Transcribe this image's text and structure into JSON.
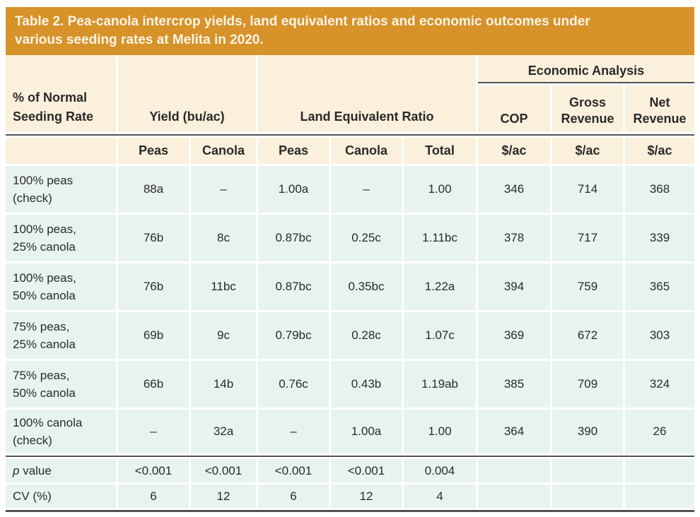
{
  "table": {
    "title": "Table 2. Pea-canola intercrop yields, land equivalent ratios and economic outcomes under\nvarious seeding rates at Melita in 2020.",
    "header": {
      "col1": "% of Normal\nSeeding Rate",
      "yield_group": "Yield (bu/ac)",
      "ler_group": "Land Equivalent Ratio",
      "economic_group": "Economic Analysis",
      "cop": "COP",
      "gross_revenue": "Gross\nRevenue",
      "net_revenue": "Net\nRevenue",
      "subheaders": [
        "Peas",
        "Canola",
        "Peas",
        "Canola",
        "Total",
        "$/ac",
        "$/ac",
        "$/ac"
      ]
    },
    "rows": [
      {
        "label": "100% peas\n(check)",
        "values": [
          "88a",
          "–",
          "1.00a",
          "–",
          "1.00",
          "346",
          "714",
          "368"
        ]
      },
      {
        "label": "100% peas,\n25% canola",
        "values": [
          "76b",
          "8c",
          "0.87bc",
          "0.25c",
          "1.11bc",
          "378",
          "717",
          "339"
        ]
      },
      {
        "label": "100% peas,\n50% canola",
        "values": [
          "76b",
          "11bc",
          "0.87bc",
          "0.35bc",
          "1.22a",
          "394",
          "759",
          "365"
        ]
      },
      {
        "label": "75% peas,\n25% canola",
        "values": [
          "69b",
          "9c",
          "0.79bc",
          "0.28c",
          "1.07c",
          "369",
          "672",
          "303"
        ]
      },
      {
        "label": "75% peas,\n50% canola",
        "values": [
          "66b",
          "14b",
          "0.76c",
          "0.43b",
          "1.19ab",
          "385",
          "709",
          "324"
        ]
      },
      {
        "label": "100% canola\n(check)",
        "values": [
          "–",
          "32a",
          "–",
          "1.00a",
          "1.00",
          "364",
          "390",
          "26"
        ]
      }
    ],
    "stats": [
      {
        "label_italic": "p",
        "label_rest": " value",
        "values": [
          "<0.001",
          "<0.001",
          "<0.001",
          "<0.001",
          "0.004",
          "",
          "",
          ""
        ]
      },
      {
        "label_italic": "",
        "label_rest": "CV (%)",
        "values": [
          "6",
          "12",
          "6",
          "12",
          "4",
          "",
          "",
          ""
        ]
      }
    ],
    "colors": {
      "title_bg": "#D7922A",
      "title_text": "#FBF5E6",
      "header_bg": "#FAF0DB",
      "body_bg": "#E7F3F1",
      "rule": "#515356",
      "text": "#2A2A2A"
    }
  }
}
